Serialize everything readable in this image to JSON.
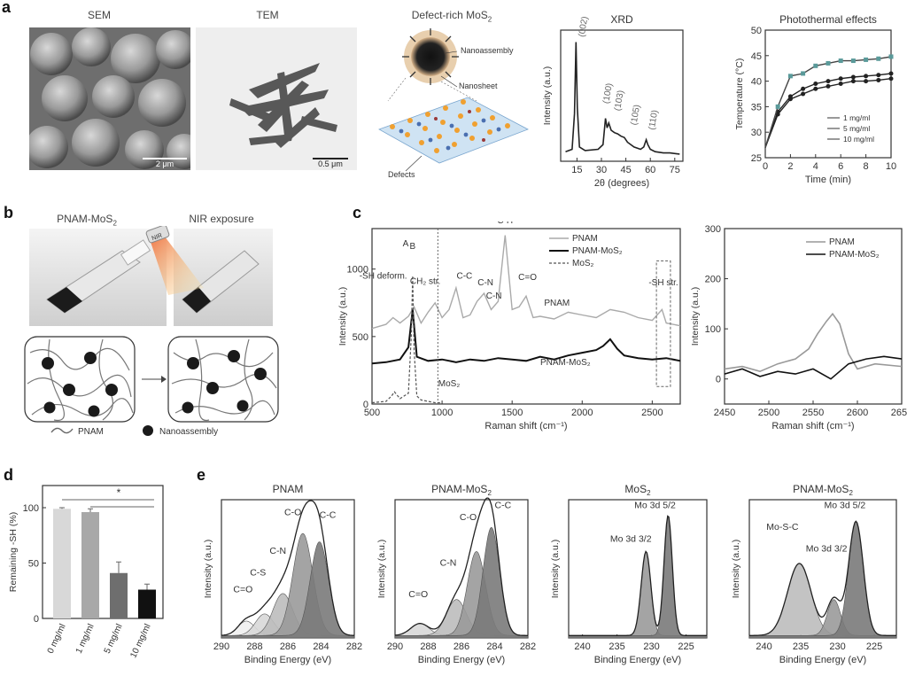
{
  "panels": {
    "a": "a",
    "b": "b",
    "c": "c",
    "d": "d",
    "e": "e"
  },
  "panel_a": {
    "sem": {
      "title": "SEM",
      "scale": "2 μm"
    },
    "tem": {
      "title": "TEM",
      "scale": "0.5 μm"
    },
    "schematic": {
      "title_main": "Defect-rich MoS",
      "title_sub": "2",
      "label_nanoassembly": "Nanoassembly",
      "label_nanosheet": "Nanosheet",
      "label_defects": "Defects"
    }
  },
  "panel_b": {
    "label_left": "PNAM-MoS",
    "label_left_sub": "2",
    "label_right": "NIR exposure",
    "nir_tag": "NIR",
    "legend_pnam": "PNAM",
    "legend_nano": "Nanoassembly"
  },
  "chart_data": [
    {
      "id": "xrd",
      "type": "line",
      "title": "XRD",
      "xlabel": "2θ (degrees)",
      "ylabel": "Intensity (a.u.)",
      "xlim": [
        5,
        80
      ],
      "xticks": [
        15,
        30,
        45,
        60,
        75
      ],
      "series": [
        {
          "x": [
            8,
            12,
            13.5,
            14.4,
            15.2,
            16.5,
            20,
            28,
            31,
            32.5,
            33.5,
            34.5,
            36,
            38,
            40,
            42,
            44,
            46,
            50,
            54,
            56,
            57.5,
            58.5,
            60,
            63,
            68,
            72,
            78
          ],
          "y": [
            8,
            10,
            40,
            100,
            45,
            12,
            9,
            10,
            14,
            36,
            28,
            32,
            26,
            24,
            23,
            21,
            20,
            16,
            12,
            10,
            12,
            18,
            14,
            10,
            8,
            7,
            7,
            6
          ]
        }
      ],
      "annotations": [
        "(002)",
        "(100)",
        "(103)",
        "(105)",
        "(110)"
      ]
    },
    {
      "id": "photothermal",
      "type": "line",
      "title": "Photothermal effects",
      "xlabel": "Time (min)",
      "ylabel": "Temperature (°C)",
      "xlim": [
        0,
        10
      ],
      "ylim": [
        25,
        50
      ],
      "xticks": [
        0,
        2,
        4,
        6,
        8,
        10
      ],
      "yticks": [
        25,
        30,
        35,
        40,
        45,
        50
      ],
      "legend": [
        "1 mg/ml",
        "5 mg/ml",
        "10 mg/ml"
      ],
      "series": [
        {
          "name": "1 mg/ml",
          "x": [
            0,
            1,
            2,
            3,
            4,
            5,
            6,
            7,
            8,
            9,
            10
          ],
          "y": [
            27,
            33.5,
            36.5,
            37.5,
            38.5,
            39,
            39.5,
            40,
            40,
            40.2,
            40.5
          ]
        },
        {
          "name": "5 mg/ml",
          "x": [
            0,
            1,
            2,
            3,
            4,
            5,
            6,
            7,
            8,
            9,
            10
          ],
          "y": [
            27,
            34,
            37,
            38.5,
            39.5,
            40,
            40.5,
            40.8,
            41,
            41.2,
            41.5
          ]
        },
        {
          "name": "10 mg/ml",
          "x": [
            0,
            1,
            2,
            3,
            4,
            5,
            6,
            7,
            8,
            9,
            10
          ],
          "y": [
            27,
            35,
            41,
            41.5,
            43,
            43.5,
            44,
            44,
            44.2,
            44.4,
            44.8
          ]
        }
      ]
    },
    {
      "id": "raman",
      "type": "line",
      "xlabel": "Raman shift (cm⁻¹)",
      "ylabel": "Intensity (a.u.)",
      "xlim": [
        500,
        2700
      ],
      "ylim": [
        0,
        1300
      ],
      "xticks": [
        500,
        1000,
        1500,
        2000,
        2500
      ],
      "yticks": [
        0,
        500,
        1000
      ],
      "legend": [
        "PNAM",
        "PNAM-MoS₂",
        "MoS₂"
      ],
      "annotations": [
        "A",
        "B",
        "-SH deform.",
        "CH₂ str.",
        "C-C",
        "C-N",
        "C-H",
        "C-N",
        "C=O",
        "-SH str.",
        "PNAM",
        "PNAM-MoS₂",
        "MoS₂"
      ],
      "series": [
        {
          "name": "PNAM",
          "x": [
            500,
            600,
            650,
            700,
            760,
            800,
            850,
            900,
            950,
            1000,
            1050,
            1100,
            1150,
            1200,
            1250,
            1300,
            1350,
            1400,
            1450,
            1500,
            1550,
            1600,
            1650,
            1700,
            1800,
            1900,
            2000,
            2100,
            2200,
            2300,
            2400,
            2500,
            2570,
            2600,
            2700
          ],
          "y": [
            560,
            590,
            640,
            600,
            650,
            720,
            600,
            680,
            750,
            640,
            700,
            860,
            640,
            660,
            760,
            820,
            700,
            760,
            1250,
            700,
            720,
            800,
            640,
            650,
            630,
            680,
            660,
            640,
            700,
            680,
            640,
            620,
            700,
            600,
            580
          ]
        },
        {
          "name": "PNAM-MoS₂",
          "x": [
            500,
            600,
            700,
            760,
            790,
            820,
            900,
            1000,
            1100,
            1200,
            1300,
            1400,
            1500,
            1600,
            1700,
            1800,
            1900,
            2000,
            2100,
            2150,
            2200,
            2250,
            2300,
            2400,
            2500,
            2600,
            2700
          ],
          "y": [
            300,
            310,
            330,
            420,
            700,
            350,
            320,
            330,
            310,
            330,
            320,
            340,
            330,
            320,
            350,
            330,
            360,
            380,
            400,
            430,
            480,
            410,
            360,
            340,
            330,
            340,
            320
          ]
        },
        {
          "name": "MoS₂",
          "x": [
            500,
            600,
            640,
            660,
            700,
            760,
            780,
            790,
            800,
            820,
            850,
            900,
            950,
            980,
            1000
          ],
          "y": [
            10,
            20,
            60,
            90,
            40,
            80,
            500,
            950,
            400,
            60,
            30,
            20,
            10,
            10,
            5
          ]
        }
      ]
    },
    {
      "id": "raman_zoom",
      "type": "line",
      "xlabel": "Raman shift (cm⁻¹)",
      "ylabel": "Intensity (a.u.)",
      "xlim": [
        2450,
        2650
      ],
      "ylim": [
        -50,
        300
      ],
      "xticks": [
        2450,
        2500,
        2550,
        2600,
        2650
      ],
      "yticks": [
        0,
        100,
        200,
        300
      ],
      "legend": [
        "PNAM",
        "PNAM-MoS₂"
      ],
      "series": [
        {
          "name": "PNAM",
          "x": [
            2450,
            2470,
            2490,
            2510,
            2530,
            2545,
            2555,
            2565,
            2572,
            2580,
            2590,
            2600,
            2620,
            2650
          ],
          "y": [
            20,
            25,
            15,
            30,
            40,
            60,
            90,
            115,
            130,
            110,
            50,
            20,
            30,
            25
          ]
        },
        {
          "name": "PNAM-MoS₂",
          "x": [
            2450,
            2470,
            2490,
            2510,
            2530,
            2550,
            2570,
            2590,
            2610,
            2630,
            2650
          ],
          "y": [
            10,
            20,
            5,
            15,
            10,
            20,
            0,
            30,
            40,
            45,
            40
          ]
        }
      ]
    },
    {
      "id": "remaining_sh",
      "type": "bar",
      "ylabel": "Remaining -SH (%)",
      "categories": [
        "0 mg/ml",
        "1 mg/ml",
        "5 mg/ml",
        "10 mg/ml"
      ],
      "values": [
        99,
        96,
        41,
        26
      ],
      "errors": [
        1,
        3,
        10,
        5
      ],
      "colors": [
        "#d8d8d8",
        "#a8a8a8",
        "#6e6e6e",
        "#111111"
      ],
      "ylim": [
        0,
        120
      ],
      "yticks": [
        0,
        50,
        100
      ],
      "significance": "*"
    },
    {
      "id": "xps_pnam",
      "type": "area",
      "title": "PNAM",
      "xlabel": "Binding Energy (eV)",
      "ylabel": "Intensity (a.u.)",
      "xlim": [
        290,
        282
      ],
      "xticks": [
        290,
        288,
        286,
        284,
        282
      ],
      "peaks": [
        {
          "label": "C=O",
          "center": 288.5,
          "height": 0.12,
          "width": 0.5
        },
        {
          "label": "C-S",
          "center": 287.4,
          "height": 0.18,
          "width": 0.55
        },
        {
          "label": "C-N",
          "center": 286.3,
          "height": 0.35,
          "width": 0.6
        },
        {
          "label": "C-O",
          "center": 285.1,
          "height": 0.85,
          "width": 0.6
        },
        {
          "label": "C-C",
          "center": 284.1,
          "height": 0.78,
          "width": 0.55
        }
      ]
    },
    {
      "id": "xps_pnam_mos2_c",
      "type": "area",
      "title": "PNAM-MoS",
      "title_sub": "2",
      "xlabel": "Binding Energy (eV)",
      "ylabel": "Intensity (a.u.)",
      "xlim": [
        290,
        282
      ],
      "xticks": [
        290,
        288,
        286,
        284,
        282
      ],
      "peaks": [
        {
          "label": "C=O",
          "center": 288.5,
          "height": 0.1,
          "width": 0.55
        },
        {
          "label": "C-N",
          "center": 286.3,
          "height": 0.3,
          "width": 0.6
        },
        {
          "label": "C-O",
          "center": 285.1,
          "height": 0.7,
          "width": 0.55
        },
        {
          "label": "C-C",
          "center": 284.2,
          "height": 0.9,
          "width": 0.5
        }
      ]
    },
    {
      "id": "xps_mos2",
      "type": "area",
      "title": "MoS",
      "title_sub": "2",
      "xlabel": "Binding Energy (eV)",
      "ylabel": "Intensity (a.u.)",
      "xlim": [
        242,
        222
      ],
      "xticks": [
        240,
        235,
        230,
        225
      ],
      "peaks": [
        {
          "label": "Mo 3d 3/2",
          "center": 230.8,
          "height": 0.7,
          "width": 0.7
        },
        {
          "label": "Mo 3d 5/2",
          "center": 227.6,
          "height": 1.0,
          "width": 0.6
        }
      ]
    },
    {
      "id": "xps_pnam_mos2_mo",
      "type": "area",
      "title": "PNAM-MoS",
      "title_sub": "2",
      "xlabel": "Binding Energy (eV)",
      "ylabel": "Intensity (a.u.)",
      "xlim": [
        242,
        222
      ],
      "xticks": [
        240,
        235,
        230,
        225
      ],
      "peaks": [
        {
          "label": "Mo-S-C",
          "center": 235.2,
          "height": 0.6,
          "width": 1.6
        },
        {
          "label": "Mo 3d 3/2",
          "center": 230.5,
          "height": 0.3,
          "width": 0.9
        },
        {
          "label": "Mo 3d 5/2",
          "center": 227.5,
          "height": 0.95,
          "width": 1.0
        }
      ]
    }
  ]
}
